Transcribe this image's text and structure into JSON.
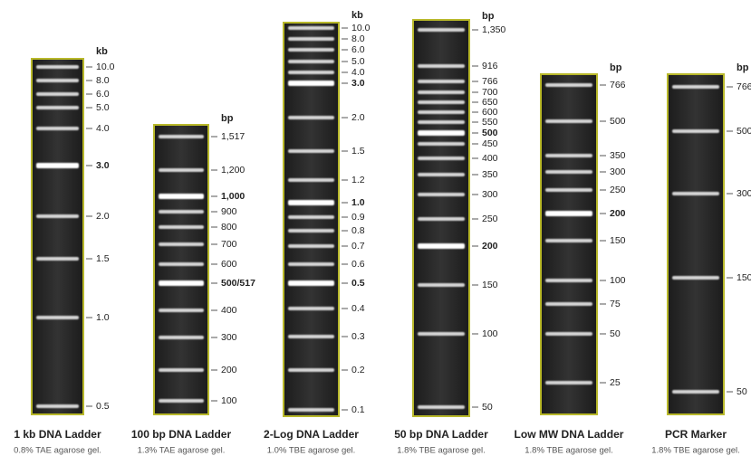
{
  "ladders": [
    {
      "title": "1 kb DNA Ladder",
      "subtitle": "0.8% TAE agarose gel.",
      "unit": "kb",
      "bands": [
        {
          "label": "10.0",
          "bold": false
        },
        {
          "label": "8.0",
          "bold": false
        },
        {
          "label": "6.0",
          "bold": false
        },
        {
          "label": "5.0",
          "bold": false
        },
        {
          "label": "4.0",
          "bold": false
        },
        {
          "label": "3.0",
          "bold": true
        },
        {
          "label": "2.0",
          "bold": false
        },
        {
          "label": "1.5",
          "bold": false
        },
        {
          "label": "1.0",
          "bold": false
        },
        {
          "label": "0.5",
          "bold": false
        }
      ]
    },
    {
      "title": "100 bp DNA Ladder",
      "subtitle": "1.3% TAE agarose gel.",
      "unit": "bp",
      "bands": [
        {
          "label": "1,517",
          "bold": false
        },
        {
          "label": "1,200",
          "bold": false
        },
        {
          "label": "1,000",
          "bold": true
        },
        {
          "label": "900",
          "bold": false
        },
        {
          "label": "800",
          "bold": false
        },
        {
          "label": "700",
          "bold": false
        },
        {
          "label": "600",
          "bold": false
        },
        {
          "label": "500/517",
          "bold": true
        },
        {
          "label": "400",
          "bold": false
        },
        {
          "label": "300",
          "bold": false
        },
        {
          "label": "200",
          "bold": false
        },
        {
          "label": "100",
          "bold": false
        }
      ]
    },
    {
      "title": "2-Log DNA Ladder",
      "subtitle": "1.0% TBE agarose gel.",
      "unit": "kb",
      "bands": [
        {
          "label": "10.0",
          "bold": false
        },
        {
          "label": "8.0",
          "bold": false
        },
        {
          "label": "6.0",
          "bold": false
        },
        {
          "label": "5.0",
          "bold": false
        },
        {
          "label": "4.0",
          "bold": false
        },
        {
          "label": "3.0",
          "bold": true
        },
        {
          "label": "2.0",
          "bold": false
        },
        {
          "label": "1.5",
          "bold": false
        },
        {
          "label": "1.2",
          "bold": false
        },
        {
          "label": "1.0",
          "bold": true
        },
        {
          "label": "0.9",
          "bold": false
        },
        {
          "label": "0.8",
          "bold": false
        },
        {
          "label": "0.7",
          "bold": false
        },
        {
          "label": "0.6",
          "bold": false
        },
        {
          "label": "0.5",
          "bold": true
        },
        {
          "label": "0.4",
          "bold": false
        },
        {
          "label": "0.3",
          "bold": false
        },
        {
          "label": "0.2",
          "bold": false
        },
        {
          "label": "0.1",
          "bold": false
        }
      ]
    },
    {
      "title": "50 bp DNA Ladder",
      "subtitle": "1.8% TBE agarose gel.",
      "unit": "bp",
      "bands": [
        {
          "label": "1,350",
          "bold": false
        },
        {
          "label": "916",
          "bold": false
        },
        {
          "label": "766",
          "bold": false
        },
        {
          "label": "700",
          "bold": false
        },
        {
          "label": "650",
          "bold": false
        },
        {
          "label": "600",
          "bold": false
        },
        {
          "label": "550",
          "bold": false
        },
        {
          "label": "500",
          "bold": true
        },
        {
          "label": "450",
          "bold": false
        },
        {
          "label": "400",
          "bold": false
        },
        {
          "label": "350",
          "bold": false
        },
        {
          "label": "300",
          "bold": false
        },
        {
          "label": "250",
          "bold": false
        },
        {
          "label": "200",
          "bold": true
        },
        {
          "label": "150",
          "bold": false
        },
        {
          "label": "100",
          "bold": false
        },
        {
          "label": "50",
          "bold": false
        }
      ]
    },
    {
      "title": "Low MW DNA Ladder",
      "subtitle": "1.8% TBE agarose gel.",
      "unit": "bp",
      "bands": [
        {
          "label": "766",
          "bold": false
        },
        {
          "label": "500",
          "bold": false
        },
        {
          "label": "350",
          "bold": false
        },
        {
          "label": "300",
          "bold": false
        },
        {
          "label": "250",
          "bold": false
        },
        {
          "label": "200",
          "bold": true
        },
        {
          "label": "150",
          "bold": false
        },
        {
          "label": "100",
          "bold": false
        },
        {
          "label": "75",
          "bold": false
        },
        {
          "label": "50",
          "bold": false
        },
        {
          "label": "25",
          "bold": false
        }
      ]
    },
    {
      "title": "PCR Marker",
      "subtitle": "1.8% TBE agarose gel.",
      "unit": "bp",
      "bands": [
        {
          "label": "766",
          "bold": false
        },
        {
          "label": "500",
          "bold": false
        },
        {
          "label": "300",
          "bold": false
        },
        {
          "label": "150",
          "bold": false
        },
        {
          "label": "50",
          "bold": false
        }
      ]
    }
  ]
}
